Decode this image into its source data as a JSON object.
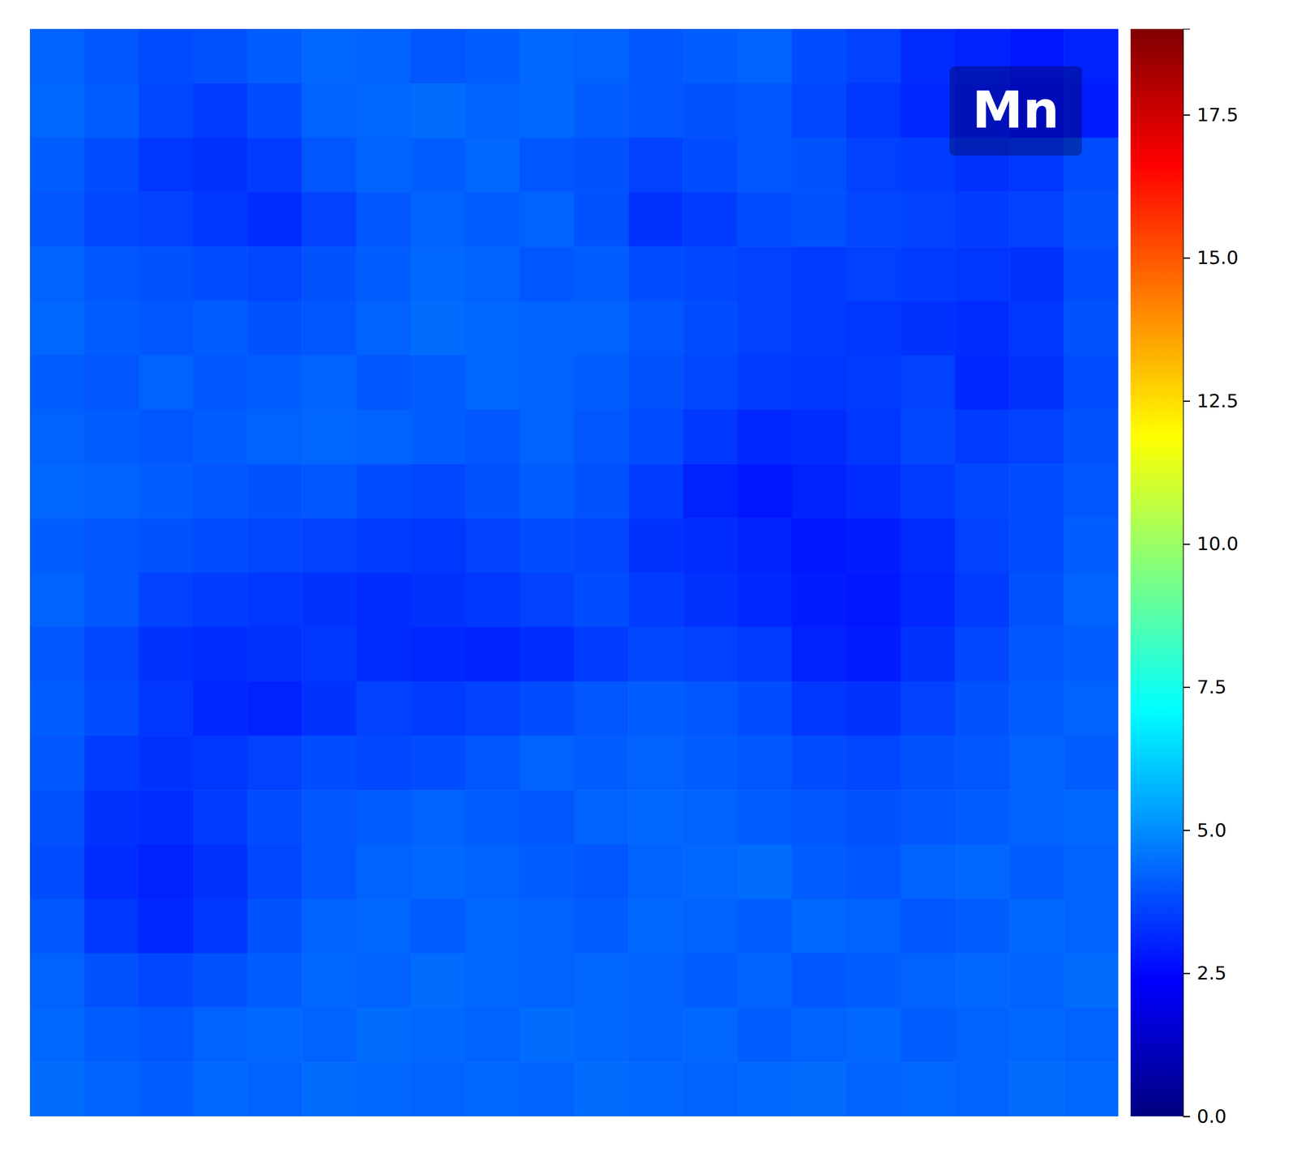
{
  "chart_data": {
    "type": "heatmap",
    "title": "Mn",
    "color": "jet",
    "values": [
      [
        4.2,
        4.0,
        3.8,
        3.9,
        4.1,
        4.3,
        4.2,
        4.0,
        4.1,
        4.3,
        4.2,
        4.0,
        4.1,
        4.2,
        3.8,
        3.6,
        3.2,
        3.0,
        2.8,
        3.0
      ],
      [
        4.3,
        4.1,
        3.7,
        3.5,
        3.8,
        4.2,
        4.3,
        4.4,
        4.2,
        4.3,
        4.1,
        4.0,
        3.9,
        4.0,
        3.7,
        3.4,
        3.1,
        2.9,
        2.7,
        2.9
      ],
      [
        4.1,
        3.8,
        3.4,
        3.3,
        3.5,
        4.0,
        4.2,
        4.1,
        4.3,
        4.0,
        3.9,
        3.6,
        3.8,
        4.0,
        3.9,
        3.6,
        3.5,
        3.3,
        3.4,
        3.8
      ],
      [
        4.0,
        3.7,
        3.6,
        3.4,
        3.2,
        3.6,
        4.0,
        4.2,
        4.1,
        4.2,
        3.9,
        3.3,
        3.5,
        3.8,
        3.9,
        3.7,
        3.6,
        3.5,
        3.6,
        3.9
      ],
      [
        4.2,
        4.0,
        3.9,
        3.8,
        3.7,
        3.9,
        4.1,
        4.3,
        4.2,
        4.0,
        4.1,
        3.8,
        3.7,
        3.6,
        3.5,
        3.6,
        3.5,
        3.4,
        3.3,
        3.8
      ],
      [
        4.3,
        4.1,
        4.0,
        4.1,
        3.9,
        4.0,
        4.2,
        4.4,
        4.3,
        4.2,
        4.2,
        4.0,
        3.8,
        3.6,
        3.5,
        3.4,
        3.3,
        3.2,
        3.4,
        3.9
      ],
      [
        4.1,
        4.0,
        4.2,
        4.0,
        4.1,
        4.2,
        4.0,
        4.1,
        4.3,
        4.2,
        4.1,
        3.9,
        3.7,
        3.5,
        3.4,
        3.5,
        3.6,
        3.1,
        3.3,
        3.8
      ],
      [
        4.2,
        4.1,
        4.0,
        4.1,
        4.2,
        4.3,
        4.2,
        4.1,
        4.0,
        4.2,
        4.0,
        3.8,
        3.4,
        3.1,
        3.2,
        3.4,
        3.7,
        3.5,
        3.6,
        3.9
      ],
      [
        4.3,
        4.2,
        4.1,
        4.0,
        3.9,
        4.0,
        3.8,
        3.7,
        3.9,
        4.1,
        3.9,
        3.5,
        3.0,
        2.8,
        3.0,
        3.2,
        3.5,
        3.7,
        3.8,
        4.0
      ],
      [
        4.1,
        4.0,
        3.9,
        3.8,
        3.7,
        3.6,
        3.5,
        3.4,
        3.6,
        3.8,
        3.7,
        3.3,
        3.2,
        3.0,
        2.8,
        2.9,
        3.2,
        3.6,
        3.8,
        4.1
      ],
      [
        4.2,
        4.0,
        3.6,
        3.5,
        3.4,
        3.3,
        3.2,
        3.3,
        3.4,
        3.6,
        3.8,
        3.5,
        3.3,
        3.1,
        2.9,
        2.8,
        3.1,
        3.5,
        3.9,
        4.2
      ],
      [
        4.0,
        3.7,
        3.3,
        3.2,
        3.3,
        3.4,
        3.2,
        3.1,
        3.0,
        3.2,
        3.5,
        3.7,
        3.6,
        3.5,
        3.0,
        2.9,
        3.3,
        3.7,
        4.0,
        4.1
      ],
      [
        4.1,
        3.8,
        3.4,
        3.1,
        3.0,
        3.3,
        3.6,
        3.5,
        3.6,
        3.8,
        4.0,
        4.1,
        4.0,
        3.8,
        3.4,
        3.3,
        3.6,
        3.9,
        4.1,
        4.2
      ],
      [
        4.0,
        3.5,
        3.3,
        3.4,
        3.6,
        3.8,
        3.7,
        3.8,
        4.0,
        4.2,
        4.1,
        4.2,
        4.1,
        4.0,
        3.8,
        3.7,
        3.9,
        4.0,
        4.2,
        4.1
      ],
      [
        3.9,
        3.3,
        3.2,
        3.5,
        3.8,
        4.0,
        4.1,
        4.2,
        4.1,
        4.0,
        4.2,
        4.3,
        4.2,
        4.1,
        4.0,
        3.9,
        4.0,
        4.1,
        4.2,
        4.3
      ],
      [
        3.8,
        3.2,
        3.0,
        3.3,
        3.7,
        4.0,
        4.2,
        4.3,
        4.2,
        4.1,
        4.0,
        4.2,
        4.3,
        4.4,
        4.1,
        4.0,
        4.2,
        4.3,
        4.1,
        4.2
      ],
      [
        4.0,
        3.4,
        3.1,
        3.4,
        3.9,
        4.2,
        4.3,
        4.1,
        4.3,
        4.2,
        4.1,
        4.3,
        4.2,
        4.1,
        4.3,
        4.2,
        4.0,
        4.1,
        4.3,
        4.2
      ],
      [
        4.2,
        3.9,
        3.7,
        3.9,
        4.1,
        4.3,
        4.2,
        4.4,
        4.3,
        4.2,
        4.3,
        4.2,
        4.1,
        4.2,
        4.0,
        4.1,
        4.2,
        4.3,
        4.2,
        4.4
      ],
      [
        4.3,
        4.1,
        4.0,
        4.2,
        4.3,
        4.2,
        4.4,
        4.3,
        4.2,
        4.4,
        4.3,
        4.2,
        4.3,
        4.1,
        4.2,
        4.3,
        4.1,
        4.2,
        4.3,
        4.2
      ],
      [
        4.4,
        4.2,
        4.1,
        4.3,
        4.2,
        4.4,
        4.3,
        4.2,
        4.3,
        4.2,
        4.4,
        4.3,
        4.2,
        4.3,
        4.4,
        4.2,
        4.3,
        4.2,
        4.4,
        4.3
      ]
    ],
    "zlim": [
      0,
      19
    ],
    "zticks": [
      {
        "value": 0,
        "label": "0.0"
      },
      2.5,
      {
        "value": 5,
        "label": "5.0"
      },
      7.5,
      {
        "value": 10,
        "label": "10.0"
      },
      12.5,
      {
        "value": 15,
        "label": "15.0"
      },
      17.5
    ]
  }
}
